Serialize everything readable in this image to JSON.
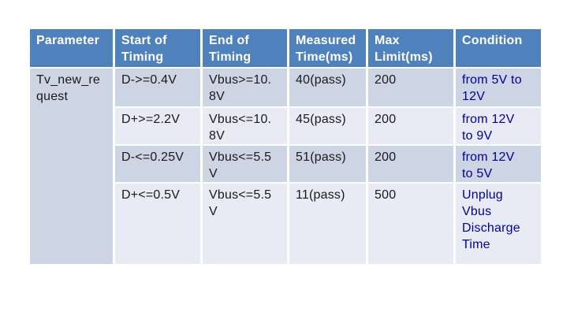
{
  "colors": {
    "page_bg": "#FFFFFF",
    "header_bg": "#4F81BD",
    "header_text": "#FFFFFF",
    "row_dark_bg": "#CDD4E3",
    "row_light_bg": "#E9EBF4",
    "body_text": "#1A1A1A",
    "condition_text": "#00009B"
  },
  "table": {
    "headers": [
      "Parameter",
      "Start of\nTiming",
      "End of\nTiming",
      "Measured\nTime(ms)",
      "Max\nLimit(ms)",
      "Condition"
    ],
    "parameter": "Tv_new_re\nquest",
    "rows": [
      {
        "start_of_timing": "D->=0.4V",
        "end_of_timing": "Vbus>=10.\n8V",
        "measured_time": "40(pass)",
        "max_limit": "200",
        "condition": "from 5V to\n12V"
      },
      {
        "start_of_timing": "D+>=2.2V",
        "end_of_timing": "Vbus<=10.\n8V",
        "measured_time": "45(pass)",
        "max_limit": "200",
        "condition": "from 12V\nto 9V"
      },
      {
        "start_of_timing": "D-<=0.25V",
        "end_of_timing": "Vbus<=5.5\nV",
        "measured_time": "51(pass)",
        "max_limit": "200",
        "condition": "from 12V\nto 5V"
      },
      {
        "start_of_timing": "D+<=0.5V",
        "end_of_timing": "Vbus<=5.5\nV",
        "measured_time": "11(pass)",
        "max_limit": "500",
        "condition": "Unplug\nVbus\nDischarge\nTime"
      }
    ]
  }
}
